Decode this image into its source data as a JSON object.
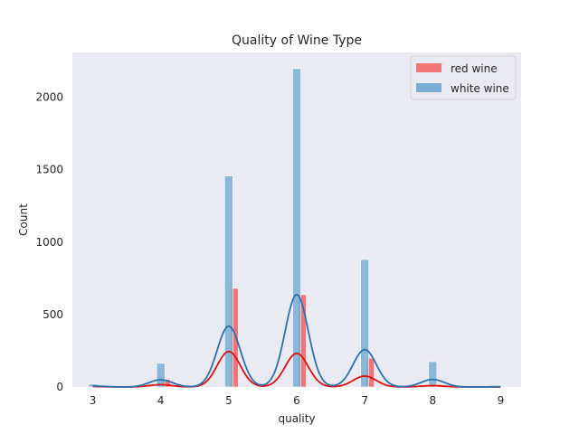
{
  "chart_data": {
    "type": "histogram",
    "title": "Quality of Wine Type",
    "xlabel": "quality",
    "ylabel": "Count",
    "xlim": [
      2.7,
      9.3
    ],
    "ylim": [
      0,
      2310
    ],
    "xticks": [
      3,
      4,
      5,
      6,
      7,
      8,
      9
    ],
    "yticks": [
      0,
      500,
      1000,
      1500,
      2000
    ],
    "grid": false,
    "legend_position": "top-right",
    "series": [
      {
        "name": "red wine",
        "color": "#f04848",
        "kde_color": "#e01010",
        "bin_width": 0.12,
        "bins": [
          {
            "x": 3.0,
            "count": 10
          },
          {
            "x": 4.0,
            "count": 53
          },
          {
            "x": 5.0,
            "count": 681
          },
          {
            "x": 6.0,
            "count": 638
          },
          {
            "x": 7.0,
            "count": 199
          },
          {
            "x": 8.0,
            "count": 18
          }
        ],
        "kde": {
          "peaks": [
            [
              3.0,
              3
            ],
            [
              4.0,
              16
            ],
            [
              5.0,
              245
            ],
            [
              6.0,
              232
            ],
            [
              7.0,
              75
            ],
            [
              8.0,
              9
            ]
          ],
          "sigma": 0.17
        }
      },
      {
        "name": "white wine",
        "color": "#7aaed4",
        "kde_color": "#2a72b0",
        "bin_width": 0.12,
        "bins": [
          {
            "x": 3.0,
            "count": 20
          },
          {
            "x": 4.0,
            "count": 163
          },
          {
            "x": 5.0,
            "count": 1457
          },
          {
            "x": 6.0,
            "count": 2198
          },
          {
            "x": 7.0,
            "count": 880
          },
          {
            "x": 8.0,
            "count": 175
          },
          {
            "x": 9.0,
            "count": 5
          }
        ],
        "kde": {
          "peaks": [
            [
              3.0,
              7
            ],
            [
              4.0,
              50
            ],
            [
              5.0,
              420
            ],
            [
              6.0,
              638
            ],
            [
              7.0,
              258
            ],
            [
              8.0,
              52
            ],
            [
              9.0,
              2
            ]
          ],
          "sigma": 0.17
        }
      }
    ]
  }
}
